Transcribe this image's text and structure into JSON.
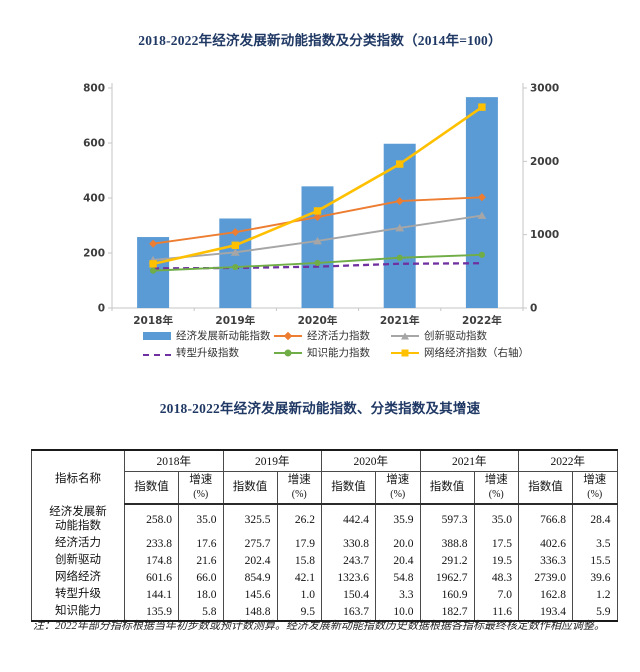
{
  "page": {
    "chart_title": "2018-2022年经济发展新动能指数及分类指数（2014年=100）",
    "table_title": "2018-2022年经济发展新动能指数、分类指数及其增速",
    "note": "注：2022年部分指标根据当年初步数或预计数测算。经济发展新动能指数历史数据根据各指标最终核定数作相应调整。"
  },
  "chart_data": {
    "type": "bar+line combo",
    "title": "2018-2022年经济发展新动能指数及分类指数（2014年=100）",
    "categories": [
      "2018年",
      "2019年",
      "2020年",
      "2021年",
      "2022年"
    ],
    "left_axis": {
      "min": 0,
      "max": 800,
      "ticks": [
        0,
        200,
        400,
        600,
        800
      ]
    },
    "right_axis": {
      "min": 0,
      "max": 3000,
      "ticks": [
        0,
        1000,
        2000,
        3000
      ]
    },
    "legend_position": "bottom",
    "grid": false,
    "series": [
      {
        "name": "经济发展新动能指数",
        "type": "bar",
        "axis": "left",
        "color": "#5B9BD5",
        "values": [
          258.0,
          325.5,
          442.4,
          597.3,
          766.8
        ]
      },
      {
        "name": "经济活力指数",
        "type": "line",
        "marker": "diamond",
        "axis": "left",
        "color": "#ED7D31",
        "values": [
          233.8,
          275.7,
          330.8,
          388.8,
          402.6
        ]
      },
      {
        "name": "创新驱动指数",
        "type": "line",
        "marker": "triangle",
        "axis": "left",
        "color": "#A6A6A6",
        "values": [
          174.8,
          202.4,
          243.7,
          291.2,
          336.3
        ]
      },
      {
        "name": "转型升级指数",
        "type": "line",
        "dashed": true,
        "axis": "left",
        "color": "#7030A0",
        "values": [
          144.1,
          145.6,
          150.4,
          160.9,
          162.8
        ]
      },
      {
        "name": "知识能力指数",
        "type": "line",
        "marker": "circle",
        "axis": "left",
        "color": "#70AD47",
        "values": [
          135.9,
          148.8,
          163.7,
          182.7,
          193.4
        ]
      },
      {
        "name": "网络经济指数（右轴）",
        "type": "line",
        "marker": "square",
        "axis": "right",
        "color": "#FFC000",
        "values": [
          601.6,
          854.9,
          1323.6,
          1962.7,
          2739.0
        ]
      }
    ]
  },
  "table": {
    "title": "2018-2022年经济发展新动能指数、分类指数及其增速",
    "corner_header": "指标名称",
    "years": [
      "2018年",
      "2019年",
      "2020年",
      "2021年",
      "2022年"
    ],
    "sub_headers": {
      "value": "指数值",
      "growth": "增速",
      "growth_unit": "(%)"
    },
    "rows": [
      {
        "label": "经济发展新\n动能指数",
        "cells": [
          "258.0",
          "35.0",
          "325.5",
          "26.2",
          "442.4",
          "35.9",
          "597.3",
          "35.0",
          "766.8",
          "28.4"
        ]
      },
      {
        "label": "经济活力",
        "cells": [
          "233.8",
          "17.6",
          "275.7",
          "17.9",
          "330.8",
          "20.0",
          "388.8",
          "17.5",
          "402.6",
          "3.5"
        ]
      },
      {
        "label": "创新驱动",
        "cells": [
          "174.8",
          "21.6",
          "202.4",
          "15.8",
          "243.7",
          "20.4",
          "291.2",
          "19.5",
          "336.3",
          "15.5"
        ]
      },
      {
        "label": "网络经济",
        "cells": [
          "601.6",
          "66.0",
          "854.9",
          "42.1",
          "1323.6",
          "54.8",
          "1962.7",
          "48.3",
          "2739.0",
          "39.6"
        ]
      },
      {
        "label": "转型升级",
        "cells": [
          "144.1",
          "18.0",
          "145.6",
          "1.0",
          "150.4",
          "3.3",
          "160.9",
          "7.0",
          "162.8",
          "1.2"
        ]
      },
      {
        "label": "知识能力",
        "cells": [
          "135.9",
          "5.8",
          "148.8",
          "9.5",
          "163.7",
          "10.0",
          "182.7",
          "11.6",
          "193.4",
          "5.9"
        ]
      }
    ]
  }
}
